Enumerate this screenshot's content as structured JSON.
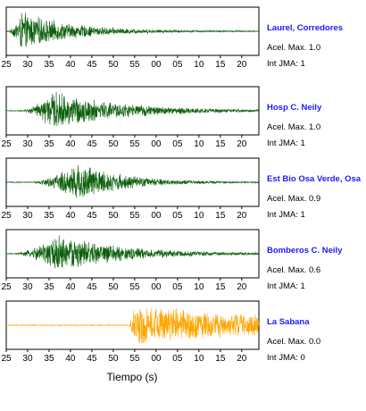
{
  "chart_data": {
    "type": "line",
    "title": "",
    "xlabel": "Tiempo (s)",
    "ylabel": "",
    "grid": false,
    "tick_labels": [
      "25",
      "30",
      "35",
      "40",
      "45",
      "50",
      "55",
      "00",
      "05",
      "10",
      "15",
      "20"
    ],
    "x_unit": "s",
    "xlim": [
      25,
      84
    ],
    "series": [
      {
        "name": "Laurel, Corredores",
        "color": "#0b5f0b",
        "onset": 25.5,
        "peak_time": 28.5,
        "peak_amp": 0.9,
        "decay": 12,
        "noise": 0.02,
        "max_line": "Acel. Max. 1.0",
        "jma_line": "Int JMA: 1",
        "tick_labels_shown": true
      },
      {
        "name": "Hosp C. Neily",
        "color": "#0b5f0b",
        "onset": 28.5,
        "peak_time": 36,
        "peak_amp": 0.9,
        "decay": 16,
        "noise": 0.02,
        "max_line": "Acel. Max. 1.0",
        "jma_line": "Int JMA: 1",
        "tick_labels_shown": true
      },
      {
        "name": "Est Bio Osa Verde, Osa",
        "color": "#0b5f0b",
        "onset": 31,
        "peak_time": 42,
        "peak_amp": 0.95,
        "decay": 10,
        "noise": 0.02,
        "max_line": "Acel. Max. 0.9",
        "jma_line": "Int JMA: 1",
        "tick_labels_shown": true
      },
      {
        "name": "Bomberos C. Neily",
        "color": "#0b5f0b",
        "onset": 27,
        "peak_time": 37,
        "peak_amp": 0.9,
        "decay": 15,
        "noise": 0.02,
        "max_line": "Acel. Max. 0.6",
        "jma_line": "Int JMA: 1",
        "tick_labels_shown": true
      },
      {
        "name": "La Sabana",
        "color": "#ffa500",
        "onset": 53.5,
        "peak_time": 55,
        "peak_amp": 0.95,
        "decay": 40,
        "noise": 0.02,
        "max_line": "Acel. Max. 0.0",
        "jma_line": "Int JMA: 0",
        "tick_labels_shown": true
      }
    ]
  }
}
